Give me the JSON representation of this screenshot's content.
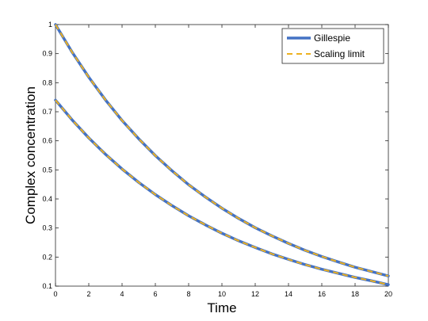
{
  "chart_data": {
    "type": "line",
    "xlabel": "Time",
    "ylabel": "Complex concentration",
    "xlim": [
      0,
      20
    ],
    "ylim": [
      0.1,
      1
    ],
    "xticks": [
      "0",
      "2",
      "4",
      "6",
      "8",
      "10",
      "12",
      "14",
      "16",
      "18",
      "20"
    ],
    "yticks": [
      "0.1",
      "0.2",
      "0.3",
      "0.4",
      "0.5",
      "0.6",
      "0.7",
      "0.8",
      "0.9",
      "1"
    ],
    "grid": false,
    "legend_position": "top-right",
    "legend": [
      {
        "label": "Gillespie",
        "color": "#4472C4",
        "style": "solid"
      },
      {
        "label": "Scaling limit",
        "color": "#EDB120",
        "style": "dashed"
      }
    ],
    "series": [
      {
        "name": "Gillespie",
        "color": "#4472C4",
        "style": "solid",
        "x": [
          0,
          1,
          2,
          3,
          4,
          5,
          6,
          7,
          8,
          9,
          10,
          11,
          12,
          13,
          14,
          15,
          16,
          17,
          18,
          19,
          20
        ],
        "y": [
          1.0,
          0.905,
          0.819,
          0.741,
          0.67,
          0.607,
          0.549,
          0.497,
          0.449,
          0.407,
          0.368,
          0.333,
          0.301,
          0.273,
          0.247,
          0.223,
          0.202,
          0.183,
          0.165,
          0.15,
          0.135
        ]
      },
      {
        "name": "Gillespie",
        "color": "#4472C4",
        "style": "solid",
        "x": [
          0,
          1,
          2,
          3,
          4,
          5,
          6,
          7,
          8,
          9,
          10,
          11,
          12,
          13,
          14,
          15,
          16,
          17,
          18,
          19,
          20
        ],
        "y": [
          0.74,
          0.672,
          0.61,
          0.554,
          0.503,
          0.457,
          0.415,
          0.377,
          0.342,
          0.311,
          0.282,
          0.256,
          0.233,
          0.211,
          0.192,
          0.174,
          0.158,
          0.144,
          0.13,
          0.118,
          0.105
        ]
      },
      {
        "name": "Scaling limit",
        "color": "#EDB120",
        "style": "dashed",
        "x": [
          0,
          1,
          2,
          3,
          4,
          5,
          6,
          7,
          8,
          9,
          10,
          11,
          12,
          13,
          14,
          15,
          16,
          17,
          18,
          19,
          20
        ],
        "y": [
          1.0,
          0.905,
          0.819,
          0.741,
          0.67,
          0.607,
          0.549,
          0.497,
          0.449,
          0.407,
          0.368,
          0.333,
          0.301,
          0.273,
          0.247,
          0.223,
          0.202,
          0.183,
          0.165,
          0.15,
          0.135
        ]
      },
      {
        "name": "Scaling limit",
        "color": "#EDB120",
        "style": "dashed",
        "x": [
          0,
          1,
          2,
          3,
          4,
          5,
          6,
          7,
          8,
          9,
          10,
          11,
          12,
          13,
          14,
          15,
          16,
          17,
          18,
          19,
          20
        ],
        "y": [
          0.74,
          0.672,
          0.61,
          0.554,
          0.503,
          0.457,
          0.415,
          0.377,
          0.342,
          0.311,
          0.282,
          0.256,
          0.233,
          0.211,
          0.192,
          0.174,
          0.158,
          0.144,
          0.13,
          0.118,
          0.105
        ]
      }
    ]
  }
}
